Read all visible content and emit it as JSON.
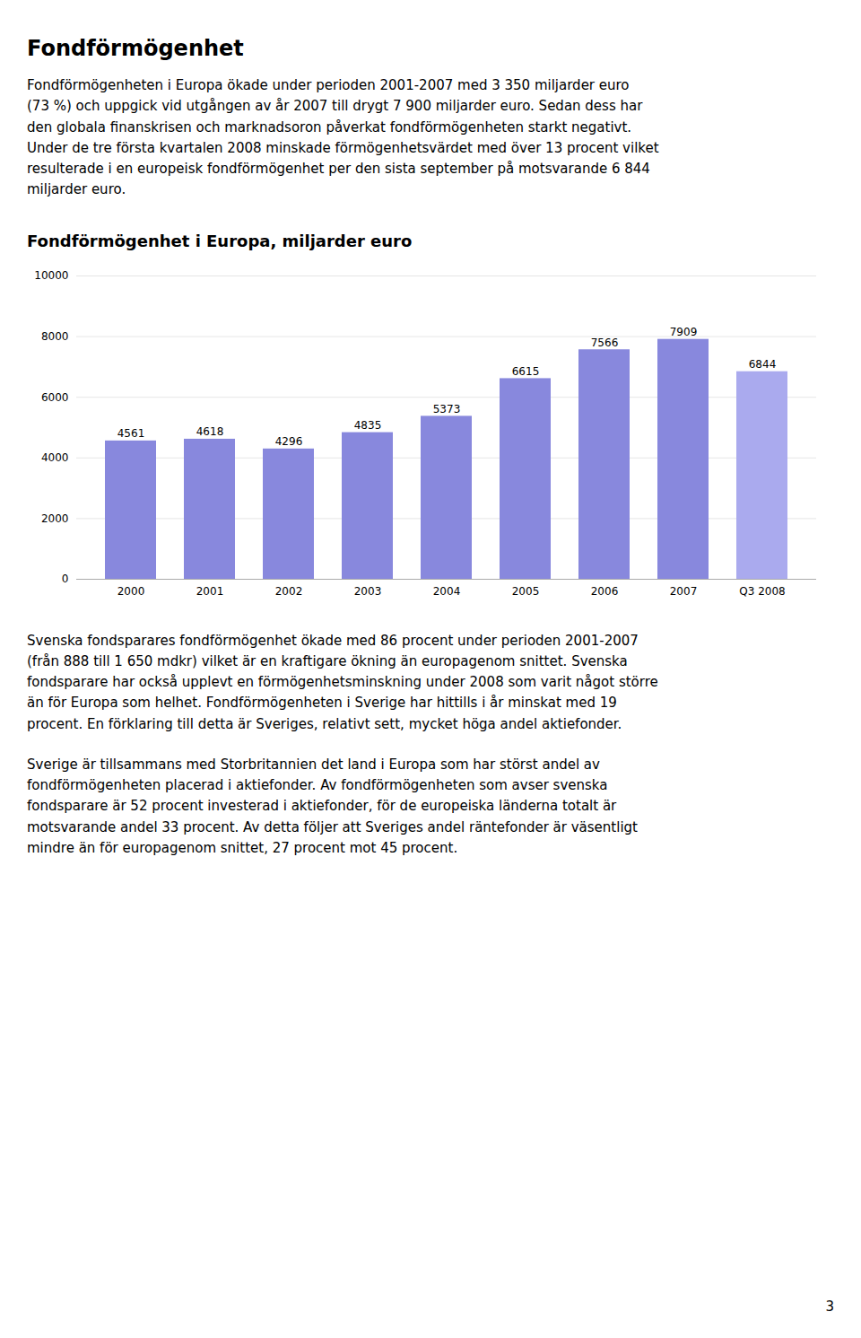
{
  "page_title": "Fondförmögenhet",
  "paragraphs_before_chart": [
    "Fondförmögenheten i Europa ökade under perioden 2001-2007 med 3 350 miljarder euro\n(73 %) och uppgick vid utgången av år 2007 till drygt 7 900 miljarder euro. Sedan dess har\nden globala finanskrisen och marknadsoron påverkat fondförmögenheten starkt negativt.\nUnder de tre första kvartalen 2008 minskade förmögenhetsvärdet med över 13 procent vilket\nresulterade i en europeisk fondförmögenhet per den sista september på motsvarande 6 844\nmiljarder euro."
  ],
  "chart_data": {
    "type": "bar",
    "title": "Fondförmögenhet i Europa, miljarder euro",
    "categories": [
      "2000",
      "2001",
      "2002",
      "2003",
      "2004",
      "2005",
      "2006",
      "2007",
      "Q3 2008"
    ],
    "values": [
      4561,
      4618,
      4296,
      4835,
      5373,
      6615,
      7566,
      7909,
      6844
    ],
    "colors": [
      "#8888dd",
      "#8888dd",
      "#8888dd",
      "#8888dd",
      "#8888dd",
      "#8888dd",
      "#8888dd",
      "#8888dd",
      "#aaaaee"
    ],
    "ylim": [
      0,
      10000
    ],
    "yticks": [
      0,
      2000,
      4000,
      6000,
      8000,
      10000
    ],
    "grid": true,
    "data_labels": true
  },
  "paragraphs_after_chart": [
    "Svenska fondsparares fondförmögenhet ökade med 86 procent under perioden 2001-2007\n(från 888 till 1 650 mdkr) vilket är en kraftigare ökning än europagenom snittet. Svenska\nfondsparare har också upplevt en förmögenhetsminskning under 2008 som varit något större\nän för Europa som helhet. Fondförmögenheten i Sverige har hittills i år minskat med 19\nprocent. En förklaring till detta är Sveriges, relativt sett, mycket höga andel aktiefonder.",
    "Sverige är tillsammans med Storbritannien det land i Europa som har störst andel av\nfondförmögenheten placerad i aktiefonder. Av fondförmögenheten som avser svenska\nfondsparare är 52 procent investerad i aktiefonder, för de europeiska länderna totalt är\nmotsvarande andel 33 procent. Av detta följer att Sveriges andel räntefonder är väsentligt\nmindre än för europagenom snittet, 27 procent mot 45 procent."
  ],
  "page_number": "3"
}
